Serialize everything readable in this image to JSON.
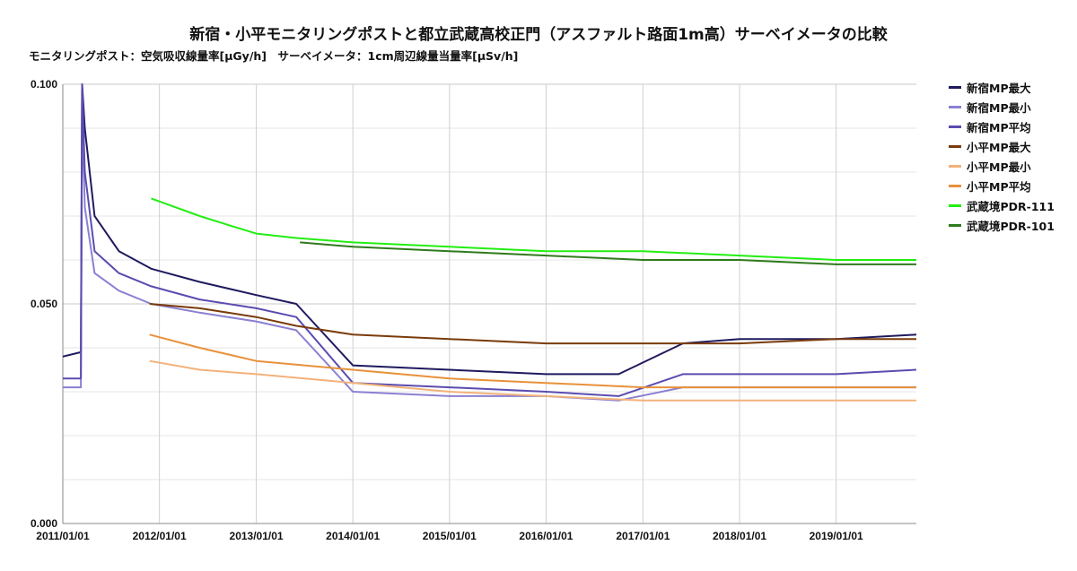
{
  "chart_data": {
    "type": "line",
    "title": "新宿・小平モニタリングポストと都立武蔵高校正門（アスファルト路面1m高）サーベイメータの比較",
    "subtitle": "モニタリングポスト：空気吸収線量率[µGy/h]　サーベイメータ：1cm周辺線量当量率[µSv/h]",
    "ylim": [
      0,
      0.1
    ],
    "y_ticks": [
      "0.000",
      "0.050",
      "0.100"
    ],
    "x_ticks": [
      "2011/01/01",
      "2012/01/01",
      "2013/01/01",
      "2014/01/01",
      "2015/01/01",
      "2016/01/01",
      "2017/01/01",
      "2018/01/01",
      "2019/01/01"
    ],
    "xlim": [
      "2011/01/01",
      "2019/10/31"
    ],
    "grid": true,
    "legend_position": "right",
    "series": [
      {
        "name": "新宿MP最大",
        "color": "#1f1a5e",
        "x": [
          "2011/01/01",
          "2011/03/10",
          "2011/03/15",
          "2011/03/25",
          "2011/05/01",
          "2011/08/01",
          "2011/12/01",
          "2012/06/01",
          "2013/01/01",
          "2013/06/01",
          "2014/01/01",
          "2015/01/01",
          "2016/01/01",
          "2016/10/01",
          "2017/06/01",
          "2018/01/01",
          "2019/01/01",
          "2019/10/31"
        ],
        "y": [
          0.038,
          0.039,
          0.1,
          0.09,
          0.07,
          0.062,
          0.058,
          0.055,
          0.052,
          0.05,
          0.036,
          0.035,
          0.034,
          0.034,
          0.041,
          0.042,
          0.042,
          0.043
        ]
      },
      {
        "name": "新宿MP最小",
        "color": "#8a80d2",
        "x": [
          "2011/01/01",
          "2011/03/10",
          "2011/03/15",
          "2011/03/25",
          "2011/05/01",
          "2011/08/01",
          "2011/12/01",
          "2012/06/01",
          "2013/01/01",
          "2013/06/01",
          "2014/01/01",
          "2015/01/01",
          "2016/01/01",
          "2016/10/01",
          "2017/06/01",
          "2018/01/01",
          "2019/01/01",
          "2019/10/31"
        ],
        "y": [
          0.031,
          0.031,
          0.095,
          0.072,
          0.057,
          0.053,
          0.05,
          0.048,
          0.046,
          0.044,
          0.03,
          0.029,
          0.029,
          0.028,
          0.031,
          0.031,
          0.031,
          0.031
        ]
      },
      {
        "name": "新宿MP平均",
        "color": "#5a4cb0",
        "x": [
          "2011/01/01",
          "2011/03/10",
          "2011/03/15",
          "2011/03/25",
          "2011/05/01",
          "2011/08/01",
          "2011/12/01",
          "2012/06/01",
          "2013/01/01",
          "2013/06/01",
          "2014/01/01",
          "2015/01/01",
          "2016/01/01",
          "2016/10/01",
          "2017/06/01",
          "2018/01/01",
          "2019/01/01",
          "2019/10/31"
        ],
        "y": [
          0.033,
          0.033,
          0.1,
          0.08,
          0.062,
          0.057,
          0.054,
          0.051,
          0.049,
          0.047,
          0.032,
          0.031,
          0.03,
          0.029,
          0.034,
          0.034,
          0.034,
          0.035
        ]
      },
      {
        "name": "小平MP最大",
        "color": "#7a3b0a",
        "x": [
          "2011/11/25",
          "2012/06/01",
          "2013/01/01",
          "2013/06/01",
          "2014/01/01",
          "2015/01/01",
          "2016/01/01",
          "2017/01/01",
          "2018/01/01",
          "2019/01/01",
          "2019/10/31"
        ],
        "y": [
          0.05,
          0.049,
          0.047,
          0.045,
          0.043,
          0.042,
          0.041,
          0.041,
          0.041,
          0.042,
          0.042
        ]
      },
      {
        "name": "小平MP最小",
        "color": "#f2b27a",
        "x": [
          "2011/11/25",
          "2012/06/01",
          "2013/01/01",
          "2014/01/01",
          "2015/01/01",
          "2016/01/01",
          "2017/01/01",
          "2018/01/01",
          "2019/01/01",
          "2019/10/31"
        ],
        "y": [
          0.037,
          0.035,
          0.034,
          0.032,
          0.03,
          0.029,
          0.028,
          0.028,
          0.028,
          0.028
        ]
      },
      {
        "name": "小平MP平均",
        "color": "#e8913a",
        "x": [
          "2011/11/25",
          "2012/06/01",
          "2013/01/01",
          "2014/01/01",
          "2015/01/01",
          "2016/01/01",
          "2017/01/01",
          "2018/01/01",
          "2019/01/01",
          "2019/10/31"
        ],
        "y": [
          0.043,
          0.04,
          0.037,
          0.035,
          0.033,
          0.032,
          0.031,
          0.031,
          0.031,
          0.031
        ]
      },
      {
        "name": "武蔵境PDR-111",
        "color": "#22ee11",
        "x": [
          "2011/12/01",
          "2012/06/01",
          "2012/09/15",
          "2013/01/01",
          "2013/06/01",
          "2014/01/01",
          "2015/01/01",
          "2016/01/01",
          "2017/01/01",
          "2018/01/01",
          "2019/01/01",
          "2019/10/31"
        ],
        "y": [
          0.074,
          0.07,
          0.068,
          0.066,
          0.065,
          0.064,
          0.063,
          0.062,
          0.062,
          0.061,
          0.06,
          0.06
        ]
      },
      {
        "name": "武蔵境PDR-101",
        "color": "#2f7a1c",
        "x": [
          "2013/06/15",
          "2014/01/01",
          "2015/01/01",
          "2016/01/01",
          "2017/01/01",
          "2018/01/01",
          "2019/01/01",
          "2019/10/31"
        ],
        "y": [
          0.064,
          0.063,
          0.062,
          0.061,
          0.06,
          0.06,
          0.059,
          0.059
        ]
      }
    ]
  }
}
